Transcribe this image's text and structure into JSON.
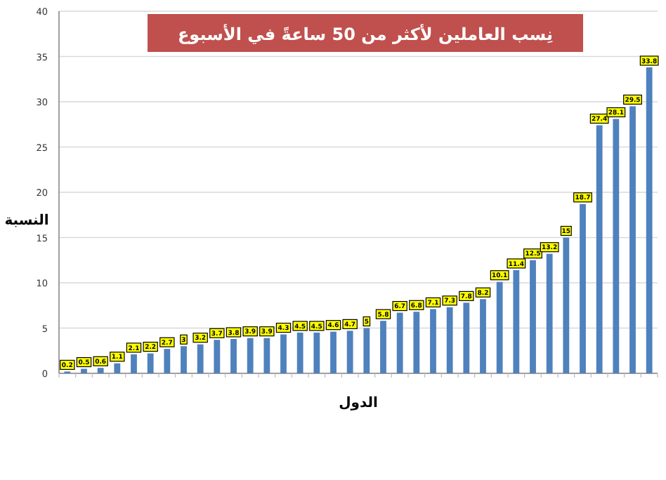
{
  "chart_data": {
    "type": "bar",
    "title": "نِسب العاملين لأكثر من 50 ساعةً في الأسبوع",
    "xlabel": "الدول",
    "ylabel": "النسبة",
    "categories": [
      null,
      null,
      null,
      null,
      null,
      null,
      null,
      null,
      null,
      null,
      null,
      null,
      null,
      null,
      null,
      null,
      null,
      null,
      null,
      null,
      null,
      null,
      null,
      null,
      null,
      null,
      null,
      null,
      null,
      null,
      null,
      null,
      null,
      null,
      null,
      null
    ],
    "values": [
      0.2,
      0.5,
      0.6,
      1.1,
      2.1,
      2.2,
      2.7,
      3,
      3.2,
      3.7,
      3.8,
      3.9,
      3.9,
      4.3,
      4.5,
      4.5,
      4.6,
      4.7,
      5,
      5.8,
      6.7,
      6.8,
      7.1,
      7.3,
      7.8,
      8.2,
      10.1,
      11.4,
      12.5,
      13.2,
      15,
      18.7,
      27.4,
      28.1,
      29.5,
      33.8
    ],
    "color": "#4f81bd",
    "ylim": [
      0,
      40
    ],
    "yticks": [
      0,
      5,
      10,
      15,
      20,
      25,
      30,
      35,
      40
    ],
    "grid": "y",
    "data_labels": true
  }
}
